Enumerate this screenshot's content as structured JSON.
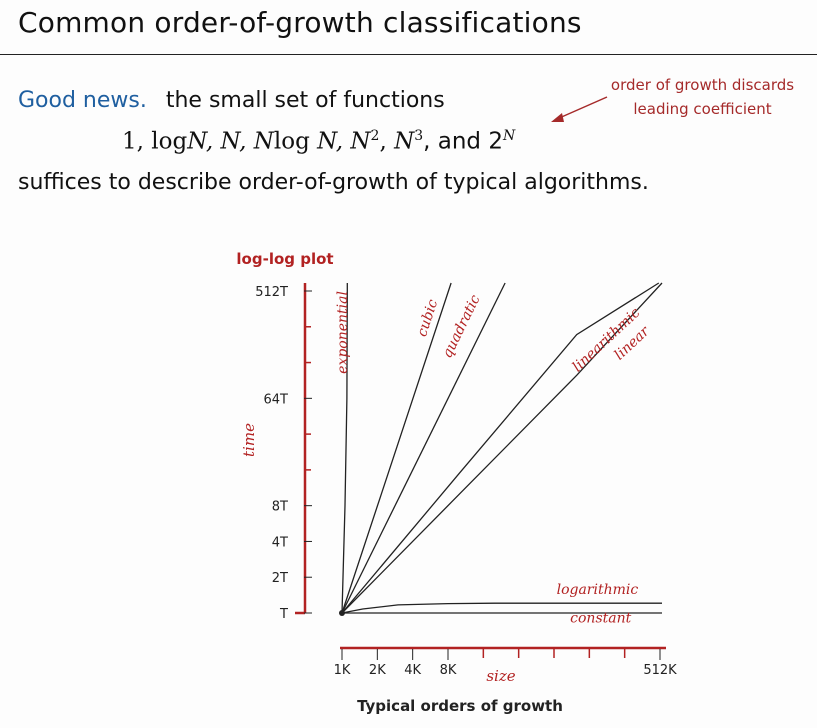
{
  "title": "Common order-of-growth classifications",
  "text": {
    "good_news": "Good news.",
    "line1_rest": "the small set of functions",
    "functions": {
      "f1": "1,",
      "f2a": "log",
      "f2b": "N,",
      "f3": "N,",
      "f4a": "N",
      "f4b": "log",
      "f4c": "N,",
      "f5a": "N",
      "f5b": "2",
      "f5c": ",",
      "f6a": "N",
      "f6b": "3",
      "f6c": ", and 2",
      "f7": "N"
    },
    "line3": "suffices to describe order-of-growth of typical algorithms.",
    "note_line1": "order of growth discards",
    "note_line2": "leading coefficient"
  },
  "colors": {
    "accent": "#1f5fa0",
    "annotation": "#b22222",
    "curve": "#222222"
  },
  "chart_data": {
    "type": "line",
    "title": "log-log plot",
    "caption": "Typical orders of growth",
    "xlabel": "size",
    "ylabel": "time",
    "x_scale": "log2",
    "y_scale": "log2",
    "x_ticks": [
      "1K",
      "2K",
      "4K",
      "8K",
      "512K"
    ],
    "y_ticks": [
      "T",
      "2T",
      "4T",
      "8T",
      "64T",
      "512T"
    ],
    "x_tick_values": [
      1,
      2,
      4,
      8,
      512
    ],
    "y_tick_values": [
      1,
      2,
      4,
      8,
      64,
      512
    ],
    "x_minor_ticks": [
      16,
      32,
      64,
      128,
      256
    ],
    "y_minor_ticks": [
      16,
      32,
      128,
      256
    ],
    "xlim": [
      1,
      512
    ],
    "ylim": [
      1,
      512
    ],
    "series": [
      {
        "name": "exponential",
        "label_pos": [
          1.1,
          512
        ],
        "label_angle": -90,
        "points": [
          [
            1,
            1
          ],
          [
            1.02,
            2
          ],
          [
            1.06,
            8
          ],
          [
            1.1,
            64
          ],
          [
            1.11,
            512
          ],
          [
            1.11,
            600
          ]
        ]
      },
      {
        "name": "cubic",
        "label_pos": [
          6.5,
          420
        ],
        "label_angle": -72,
        "points": [
          [
            1,
            1
          ],
          [
            8.5,
            600
          ]
        ]
      },
      {
        "name": "quadratic",
        "label_pos": [
          15,
          450
        ],
        "label_angle": -64,
        "points": [
          [
            1,
            1
          ],
          [
            24.5,
            600
          ]
        ]
      },
      {
        "name": "linearithmic",
        "label_pos": [
          350,
          330
        ],
        "label_angle": -43,
        "points": [
          [
            1,
            1
          ],
          [
            10,
            15
          ],
          [
            100,
            220
          ],
          [
            500,
            700
          ]
        ]
      },
      {
        "name": "linear",
        "label_pos": [
          420,
          230
        ],
        "label_angle": -43,
        "points": [
          [
            1,
            1
          ],
          [
            10,
            10
          ],
          [
            100,
            100
          ],
          [
            600,
            600
          ]
        ]
      },
      {
        "name": "logarithmic",
        "label_pos": [
          150,
          1.45
        ],
        "label_angle": 0,
        "points": [
          [
            1,
            1
          ],
          [
            1.5,
            1.08
          ],
          [
            3,
            1.17
          ],
          [
            8,
            1.2
          ],
          [
            20,
            1.21
          ],
          [
            600,
            1.21
          ]
        ]
      },
      {
        "name": "constant",
        "label_pos": [
          160,
          0.83
        ],
        "label_angle": 0,
        "points": [
          [
            1,
            1
          ],
          [
            600,
            1
          ]
        ]
      }
    ]
  }
}
